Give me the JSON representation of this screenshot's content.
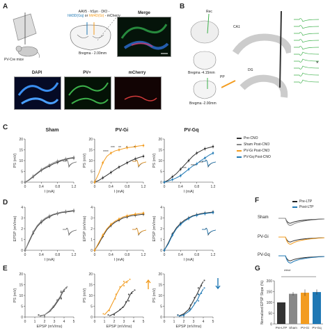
{
  "panel_labels": {
    "A": "A",
    "B": "B",
    "C": "C",
    "D": "D",
    "E": "E",
    "F": "F",
    "G": "G"
  },
  "panel_a": {
    "virus_line1": "AAV5 · hSyn · DIO -",
    "virus_gq": "hM3D(Gq)",
    "virus_or": "or",
    "virus_gi": "hM4D(Gi)",
    "virus_end": "- mCherry",
    "mouse_label": "PV-Cre mice",
    "bregma": "Bregma - 2.00mm",
    "merge": "Merge",
    "dapi": "DAPI",
    "pv": "PV+",
    "mcherry": "mCherry"
  },
  "panel_b": {
    "rec": "Rec",
    "bregma1": "Bregma -4.15mm",
    "bregma2": "Bregma -2.00mm",
    "pp": "PP",
    "dg": "DG",
    "ca1": "CA1",
    "star": "*"
  },
  "panel_c_titles": [
    "Sham",
    "PV-Gi",
    "PV-Gq"
  ],
  "legend_c": [
    {
      "label": "Pre-CNO",
      "color": "#333333"
    },
    {
      "label": "Sham Post-CNO",
      "color": "#888888"
    },
    {
      "label": "PV-Gi Post-CNO",
      "color": "#f39c1f"
    },
    {
      "label": "PV-Gq Post-CNO",
      "color": "#1f78b4"
    }
  ],
  "stars_gi": [
    "****",
    "***",
    "**",
    "*",
    "*"
  ],
  "stars_gq": [
    "***",
    "****",
    "***"
  ],
  "panel_f": {
    "pre_ltp": "Pre-LTP",
    "post_ltp": "Post-LTP",
    "rows": [
      "Sham",
      "PV-Gi",
      "PV-Gq"
    ]
  },
  "panel_g": {
    "sig": "****"
  },
  "colors": {
    "pre": "#333333",
    "sham": "#888888",
    "gi": "#f39c1f",
    "gq": "#1f78b4",
    "green": "#3cb04a"
  },
  "chart_data": [
    {
      "type": "line",
      "panel": "C",
      "title": "Sham",
      "xlabel": "I (mA)",
      "ylabel": "PS (mV)",
      "xlim": [
        0,
        1.2
      ],
      "ylim": [
        0,
        20
      ],
      "xticks": [
        0,
        0.4,
        0.8,
        1.2
      ],
      "yticks": [
        0,
        5,
        10,
        15,
        20
      ],
      "x": [
        0,
        0.1,
        0.2,
        0.3,
        0.4,
        0.5,
        0.6,
        0.7,
        0.8,
        0.9,
        1.0,
        1.1,
        1.2
      ],
      "series": [
        {
          "name": "Pre-CNO",
          "values": [
            0,
            1,
            2.5,
            4,
            5.5,
            6.5,
            7.5,
            8.5,
            9.2,
            10,
            10.5,
            11,
            11.2
          ]
        },
        {
          "name": "Sham Post-CNO",
          "values": [
            0,
            1.2,
            2.8,
            4.3,
            5.8,
            7,
            8,
            9,
            9.8,
            10.3,
            10.8,
            11.2,
            11.5
          ]
        }
      ]
    },
    {
      "type": "line",
      "panel": "C",
      "title": "PV-Gi",
      "xlabel": "I (mA)",
      "ylabel": "PS (mV)",
      "xlim": [
        0,
        1.2
      ],
      "ylim": [
        0,
        20
      ],
      "xticks": [
        0,
        0.4,
        0.8,
        1.2
      ],
      "yticks": [
        0,
        5,
        10,
        15,
        20
      ],
      "x": [
        0,
        0.1,
        0.2,
        0.3,
        0.4,
        0.5,
        0.6,
        0.7,
        0.8,
        0.9,
        1.0,
        1.1,
        1.2
      ],
      "series": [
        {
          "name": "Pre-CNO",
          "values": [
            0,
            0.8,
            2,
            3.2,
            4.5,
            5.8,
            7,
            8,
            9,
            10,
            10.8,
            11.5,
            12
          ]
        },
        {
          "name": "PV-Gi Post-CNO",
          "values": [
            0,
            4,
            9,
            12,
            13.5,
            14.5,
            15,
            15.5,
            16,
            16.2,
            16.5,
            16.8,
            17
          ]
        }
      ]
    },
    {
      "type": "line",
      "panel": "C",
      "title": "PV-Gq",
      "xlabel": "I (mA)",
      "ylabel": "PS (mV)",
      "xlim": [
        0,
        1.2
      ],
      "ylim": [
        0,
        20
      ],
      "xticks": [
        0,
        0.4,
        0.8,
        1.2
      ],
      "yticks": [
        0,
        5,
        10,
        15,
        20
      ],
      "x": [
        0,
        0.1,
        0.2,
        0.3,
        0.4,
        0.5,
        0.6,
        0.7,
        0.8,
        0.9,
        1.0,
        1.1,
        1.2
      ],
      "series": [
        {
          "name": "Pre-CNO",
          "values": [
            0,
            1,
            2.5,
            4,
            6,
            8,
            10,
            12,
            13.5,
            14.5,
            15.5,
            16,
            16.5
          ]
        },
        {
          "name": "PV-Gq Post-CNO",
          "values": [
            0,
            0.5,
            1.2,
            2,
            3,
            4.5,
            6,
            7.5,
            8.5,
            10,
            11.2,
            12.5,
            13.5
          ]
        }
      ]
    },
    {
      "type": "line",
      "panel": "D",
      "xlabel": "I (mA)",
      "ylabel": "EPSP (mV/ms)",
      "xlim": [
        0,
        1.2
      ],
      "ylim": [
        0,
        4
      ],
      "xticks": [
        0,
        0.4,
        0.8,
        1.2
      ],
      "yticks": [
        0,
        1,
        2,
        3,
        4
      ],
      "x": [
        0,
        0.1,
        0.2,
        0.3,
        0.4,
        0.5,
        0.6,
        0.7,
        0.8,
        0.9,
        1.0,
        1.1,
        1.2
      ],
      "series": [
        {
          "name": "Pre-CNO",
          "values": [
            0,
            0.8,
            1.6,
            2.2,
            2.6,
            2.9,
            3.1,
            3.3,
            3.4,
            3.5,
            3.55,
            3.6,
            3.65
          ]
        },
        {
          "name": "Sham Post-CNO",
          "values": [
            0,
            0.9,
            1.7,
            2.3,
            2.7,
            3.0,
            3.2,
            3.35,
            3.45,
            3.55,
            3.6,
            3.65,
            3.7
          ]
        }
      ]
    },
    {
      "type": "line",
      "panel": "D",
      "xlabel": "I (mA)",
      "ylabel": "EPSP (mV/ms)",
      "xlim": [
        0,
        1.2
      ],
      "ylim": [
        0,
        4
      ],
      "xticks": [
        0,
        0.4,
        0.8,
        1.2
      ],
      "yticks": [
        0,
        1,
        2,
        3,
        4
      ],
      "x": [
        0,
        0.1,
        0.2,
        0.3,
        0.4,
        0.5,
        0.6,
        0.7,
        0.8,
        0.9,
        1.0,
        1.1,
        1.2
      ],
      "series": [
        {
          "name": "Pre-CNO",
          "values": [
            0,
            0.6,
            1.3,
            1.9,
            2.3,
            2.6,
            2.8,
            3.0,
            3.1,
            3.2,
            3.25,
            3.3,
            3.35
          ]
        },
        {
          "name": "PV-Gi Post-CNO",
          "values": [
            0,
            0.7,
            1.4,
            2.0,
            2.4,
            2.7,
            2.9,
            3.1,
            3.2,
            3.3,
            3.35,
            3.4,
            3.45
          ]
        }
      ]
    },
    {
      "type": "line",
      "panel": "D",
      "xlabel": "I (mA)",
      "ylabel": "EPSP (mV/ms)",
      "xlim": [
        0,
        1.2
      ],
      "ylim": [
        0,
        4
      ],
      "xticks": [
        0,
        0.4,
        0.8,
        1.2
      ],
      "yticks": [
        0,
        1,
        2,
        3,
        4
      ],
      "x": [
        0,
        0.1,
        0.2,
        0.3,
        0.4,
        0.5,
        0.6,
        0.7,
        0.8,
        0.9,
        1.0,
        1.1,
        1.2
      ],
      "series": [
        {
          "name": "Pre-CNO",
          "values": [
            0,
            0.7,
            1.5,
            2.1,
            2.5,
            2.8,
            3.0,
            3.2,
            3.3,
            3.4,
            3.45,
            3.5,
            3.55
          ]
        },
        {
          "name": "PV-Gq Post-CNO",
          "values": [
            0,
            0.6,
            1.4,
            2.0,
            2.4,
            2.7,
            2.95,
            3.15,
            3.25,
            3.35,
            3.4,
            3.45,
            3.5
          ]
        }
      ]
    },
    {
      "type": "scatter",
      "panel": "E",
      "xlabel": "EPSP (mV/ms)",
      "ylabel": "PS (mV)",
      "xlim": [
        0,
        5
      ],
      "ylim": [
        0,
        20
      ],
      "xticks": [
        0,
        1,
        2,
        3,
        4,
        5
      ],
      "yticks": [
        0,
        5,
        10,
        15,
        20
      ],
      "series": [
        {
          "name": "Pre-CNO",
          "x": [
            1.5,
            2,
            2.5,
            3,
            3.3,
            3.6,
            3.8,
            4,
            4.1
          ],
          "y": [
            0.5,
            1,
            2.5,
            5,
            7,
            9,
            11,
            12.5,
            13
          ]
        },
        {
          "name": "Sham Post-CNO",
          "x": [
            1.5,
            2,
            2.5,
            3,
            3.3,
            3.6,
            3.8,
            4,
            4.2
          ],
          "y": [
            0.3,
            1,
            2.8,
            5.5,
            7.5,
            9.5,
            11.5,
            12.8,
            13.5
          ]
        }
      ]
    },
    {
      "type": "scatter",
      "panel": "E",
      "xlabel": "EPSP (mV/ms)",
      "ylabel": "PS (mV)",
      "xlim": [
        0,
        5
      ],
      "ylim": [
        0,
        20
      ],
      "xticks": [
        0,
        1,
        2,
        3,
        4,
        5
      ],
      "yticks": [
        0,
        5,
        10,
        15,
        20
      ],
      "series": [
        {
          "name": "Pre-CNO",
          "x": [
            1.5,
            2,
            2.5,
            3,
            3.2,
            3.4,
            3.6,
            3.8,
            4
          ],
          "y": [
            0.5,
            1.5,
            3,
            5,
            6.5,
            8,
            10,
            11.5,
            12
          ]
        },
        {
          "name": "PV-Gi Post-CNO",
          "x": [
            1,
            1.5,
            2,
            2.3,
            2.6,
            2.9,
            3.1,
            3.3,
            3.5
          ],
          "y": [
            1,
            3.5,
            8,
            11,
            13.5,
            15,
            16,
            16.5,
            17
          ]
        }
      ]
    },
    {
      "type": "scatter",
      "panel": "E",
      "xlabel": "EPSP (mV/ms)",
      "ylabel": "PS (mV)",
      "xlim": [
        0,
        5
      ],
      "ylim": [
        0,
        20
      ],
      "xticks": [
        0,
        1,
        2,
        3,
        4,
        5
      ],
      "yticks": [
        0,
        5,
        10,
        15,
        20
      ],
      "series": [
        {
          "name": "Pre-CNO",
          "x": [
            1.5,
            2,
            2.5,
            2.8,
            3.1,
            3.4,
            3.6,
            3.8,
            4
          ],
          "y": [
            0.5,
            1.5,
            3.5,
            6,
            8.5,
            11,
            13,
            15,
            16.5
          ]
        },
        {
          "name": "PV-Gq Post-CNO",
          "x": [
            1.5,
            2,
            2.5,
            2.8,
            3.1,
            3.4,
            3.6,
            3.8,
            4
          ],
          "y": [
            0.3,
            1,
            2.5,
            4,
            6,
            8,
            10,
            11.5,
            13
          ]
        }
      ]
    },
    {
      "type": "bar",
      "panel": "G",
      "ylabel": "Normalized EPSP Slope (%)",
      "categories": [
        "Pre-LTP",
        "Sham",
        "PV-Gi",
        "PV-Gq"
      ],
      "values": [
        100,
        140,
        145,
        148
      ],
      "errors": [
        0,
        8,
        15,
        12
      ],
      "ylim": [
        0,
        200
      ],
      "yticks": [
        0,
        50,
        100,
        150,
        200
      ]
    }
  ]
}
